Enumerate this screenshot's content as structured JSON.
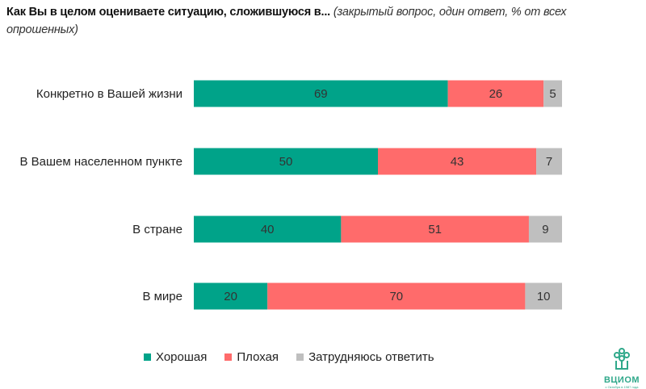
{
  "chart_data": {
    "type": "bar",
    "stacked": true,
    "orientation": "horizontal",
    "title": "Как Вы в целом оцениваете ситуацию, сложившуюся в...",
    "subtitle": "(закрытый вопрос, один ответ, % от всех опрошенных)",
    "categories": [
      "Конкретно в Вашей жизни",
      "В Вашем населенном пункте",
      "В стране",
      "В мире"
    ],
    "series": [
      {
        "name": "Хорошая",
        "color": "#00a389",
        "values": [
          69,
          50,
          40,
          20
        ]
      },
      {
        "name": "Плохая",
        "color": "#ff6b6b",
        "values": [
          26,
          43,
          51,
          70
        ]
      },
      {
        "name": "Затрудняюсь ответить",
        "color": "#bfbfbf",
        "values": [
          5,
          7,
          9,
          10
        ]
      }
    ],
    "xlim": [
      0,
      100
    ],
    "grid": false,
    "legend": "bottom"
  },
  "logo": {
    "name": "ВЦИОМ",
    "tagline": "с Октября в 1987 года"
  }
}
